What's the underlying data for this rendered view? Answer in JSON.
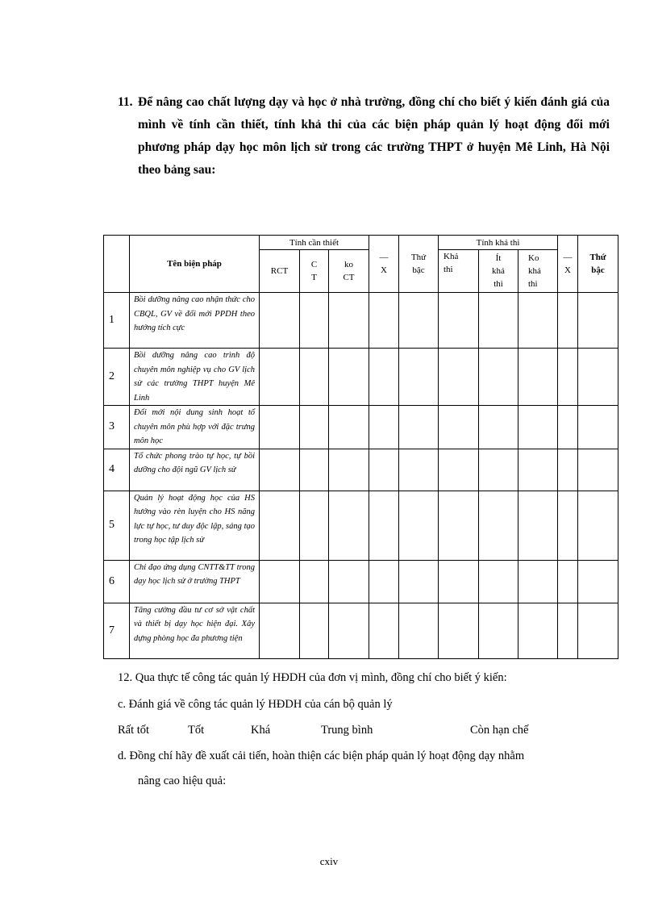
{
  "question11": {
    "number": "11.",
    "text": "Để nâng cao chất lượng dạy và học ở nhà trường, đồng chí cho biết ý kiến đánh giá của mình về tính cần thiết, tính khả thi của các biện pháp quản lý hoạt động đổi mới phương pháp dạy học môn lịch sử trong các trường THPT ở huyện Mê Linh, Hà Nội theo bảng sau:"
  },
  "table": {
    "header": {
      "name": "Tên biện pháp",
      "group1": "Tính cần thiết",
      "group2": "Tính khả thi",
      "rct": "RCT",
      "ct": "C T",
      "koct": "ko CT",
      "x": "X",
      "thubac": "Thứ bậc",
      "khathi": "Khả thi",
      "itkhathi": "Ít khả thi",
      "kokhathi": "Ko khả thi"
    },
    "rows": [
      {
        "no": "1",
        "name": "Bồi dưỡng nâng cao nhận thức cho CBQL, GV về đổi mới PPDH theo hướng tích cực"
      },
      {
        "no": "2",
        "name": "Bồi dưỡng nâng cao trình độ chuyên môn nghiệp vụ cho GV lịch sử các trường THPT huyện Mê Linh"
      },
      {
        "no": "3",
        "name": "Đổi mới nội dung sinh hoạt tổ chuyên môn phù hợp với đặc trưng môn học"
      },
      {
        "no": "4",
        "name": "Tổ chức phong trào tự học, tự bồi dưỡng cho đội ngũ GV lịch sử"
      },
      {
        "no": "5",
        "name": "Quản lý hoạt động học của HS hướng vào rèn luyện cho HS năng lực tự học, tư duy độc lập, sáng tạo trong học tập lịch sử"
      },
      {
        "no": "6",
        "name": "Chỉ đạo ứng dụng CNTT&TT trong dạy học lịch sử ở trường THPT"
      },
      {
        "no": "7",
        "name": "Tăng cường đầu tư cơ sở vật chất và thiết bị dạy học hiện đại. Xây dựng phòng học đa phương tiện"
      }
    ]
  },
  "question12": {
    "text": "12. Qua thực tế công tác quản lý HĐDH của đơn vị mình, đồng chí cho biết ý kiến:",
    "c": "c.   Đánh giá về công tác quản lý HĐDH của cán bộ quản lý",
    "options": [
      "Rất tốt",
      "Tốt",
      "Khá",
      "Trung bình",
      "Còn hạn chế"
    ],
    "d1": "d.   Đồng chí hãy đề xuất cải tiến, hoàn thiện các biện pháp quản lý hoạt động dạy nhằm",
    "d2": "nâng cao hiệu quả:"
  },
  "page_number": "cxiv"
}
